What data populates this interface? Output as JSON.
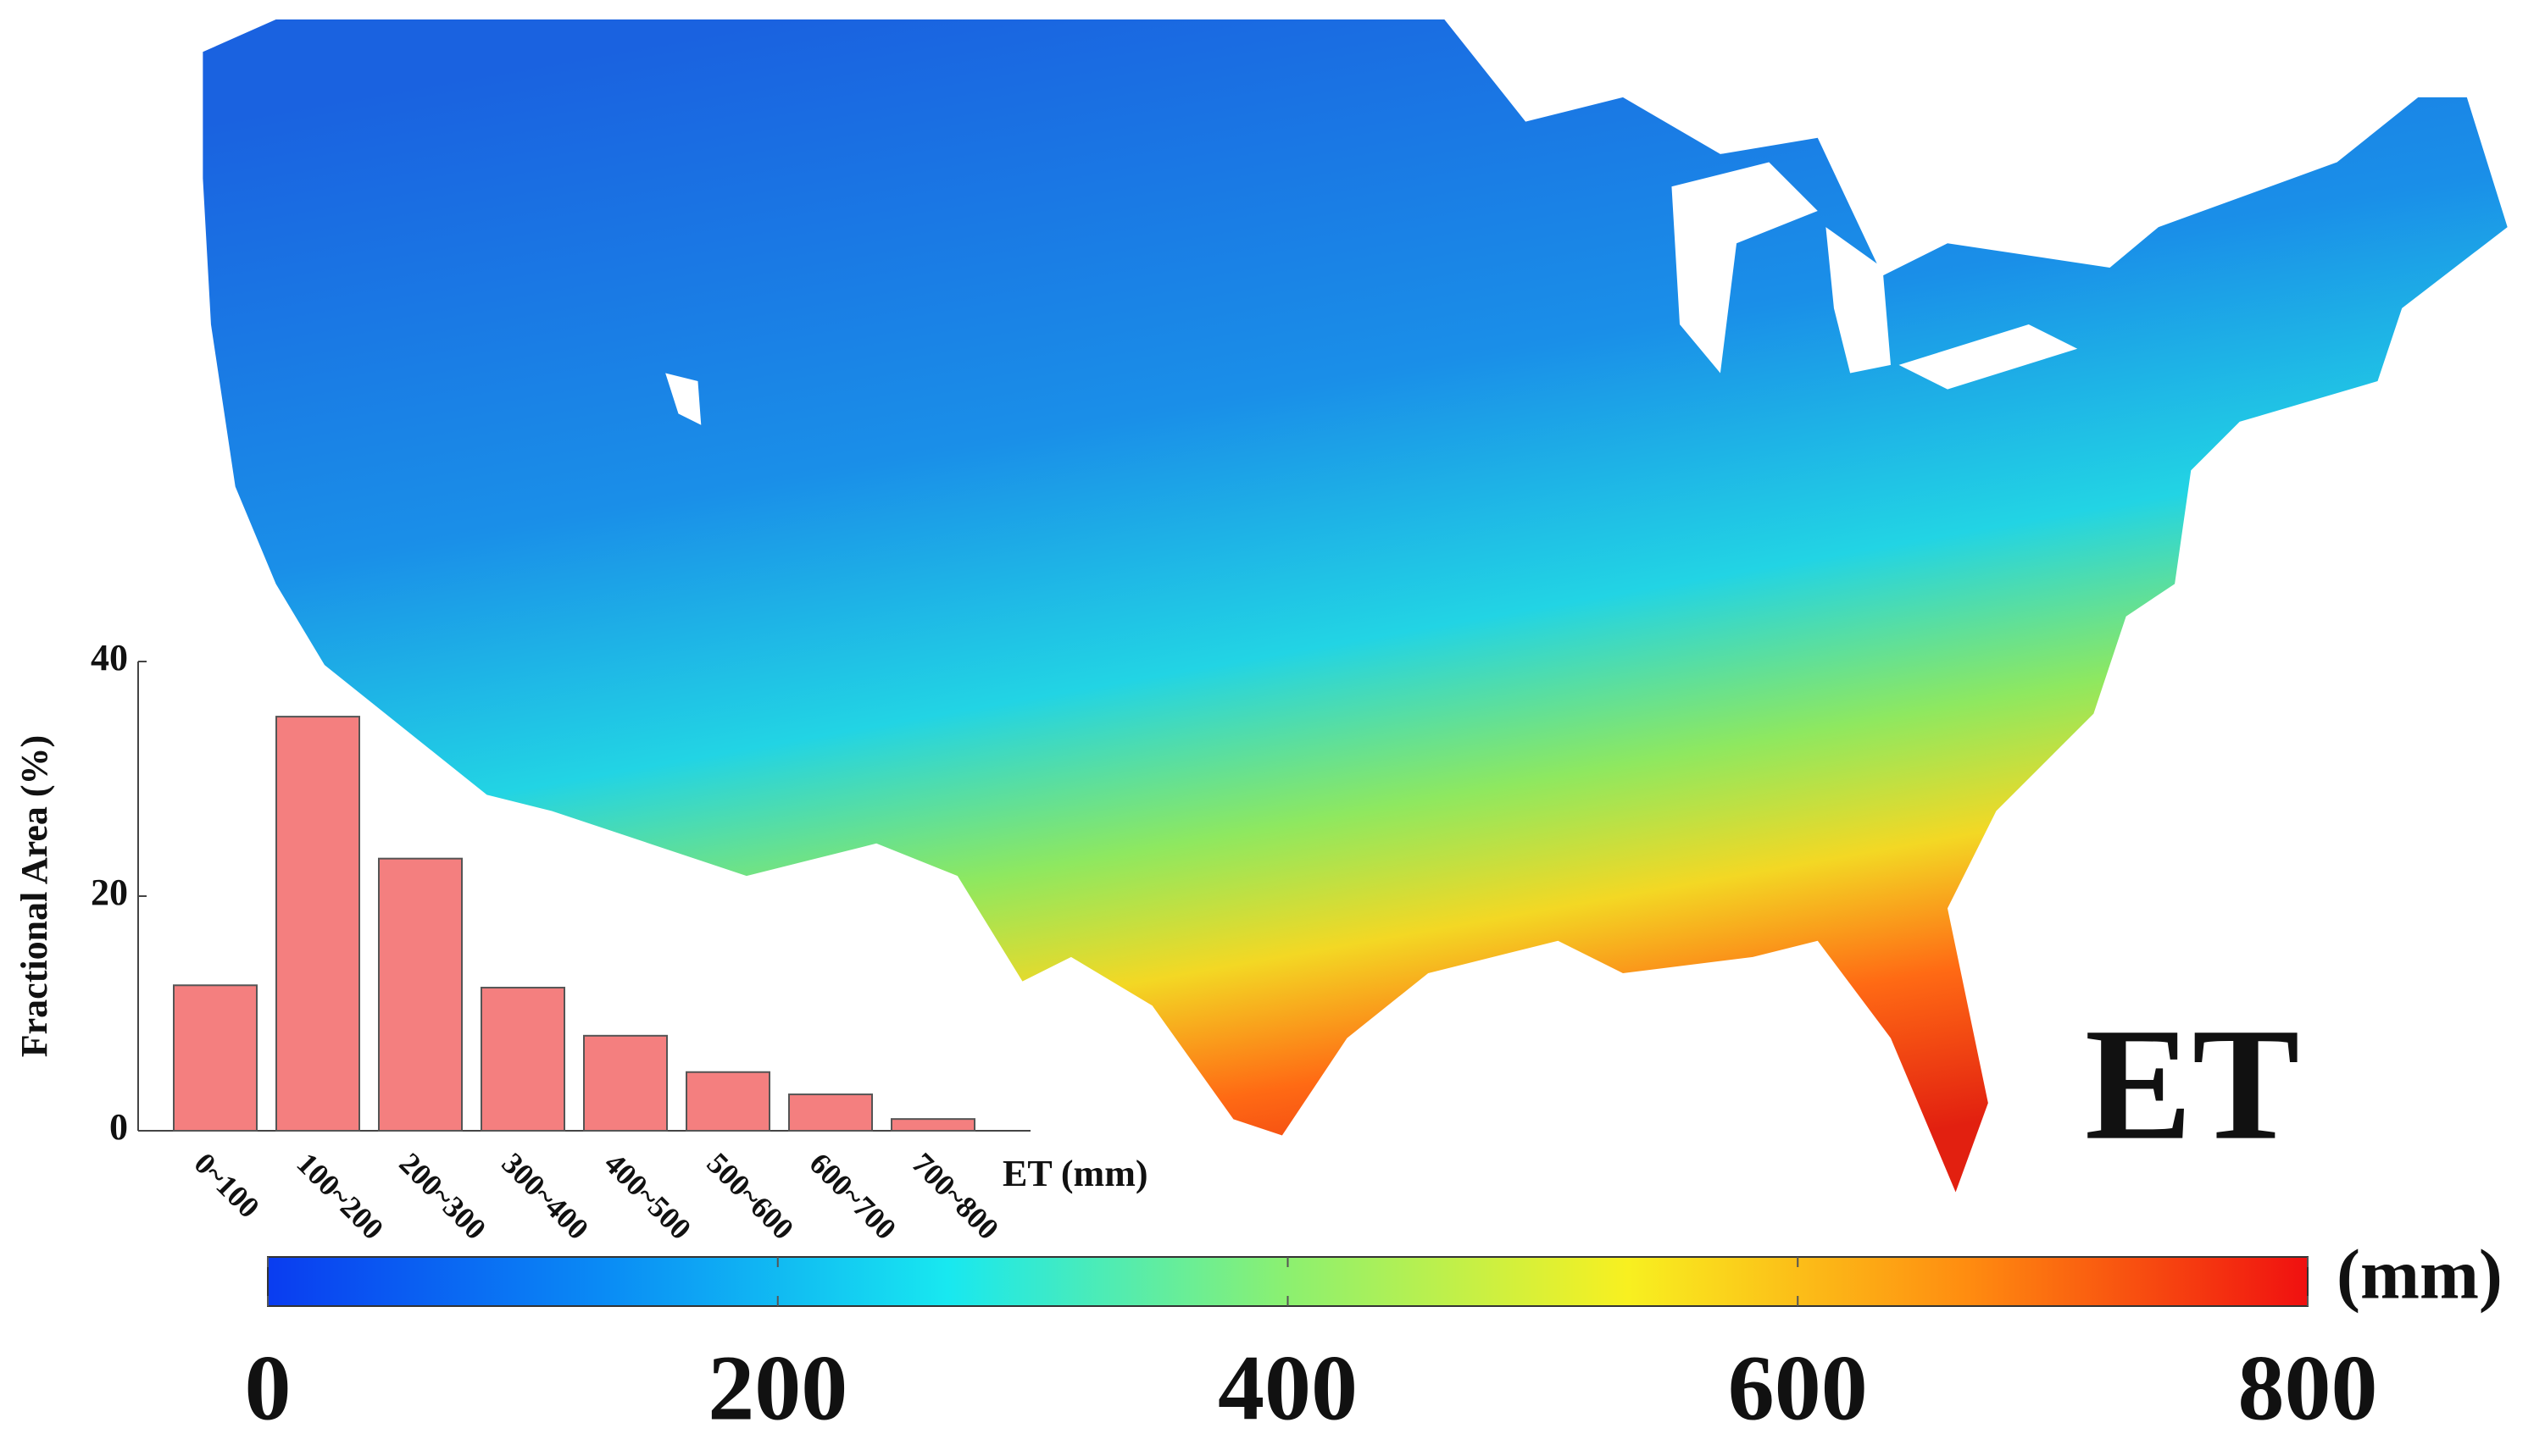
{
  "title": "ET",
  "colorbar": {
    "lim": [
      0,
      800
    ],
    "ticks": [
      0,
      200,
      400,
      600,
      800
    ],
    "unit": "(mm)",
    "colormap": [
      "#0a3cf0",
      "#0a8cf5",
      "#18e8f0",
      "#8cf070",
      "#f8f020",
      "#ff8c10",
      "#f01010"
    ]
  },
  "chart_data": {
    "type": "bar",
    "categories": [
      "0~100",
      "100~200",
      "200~300",
      "300~400",
      "400~500",
      "500~600",
      "600~700",
      "700~800"
    ],
    "values": [
      12.4,
      35.3,
      23.2,
      12.2,
      8.1,
      5.0,
      3.1,
      1.0
    ],
    "color": "#f47f7f",
    "ylim": [
      0,
      40
    ],
    "yticks": [
      0,
      20,
      40
    ],
    "y_label": "Fractional Area (%)",
    "x_label": "ET (mm)"
  }
}
